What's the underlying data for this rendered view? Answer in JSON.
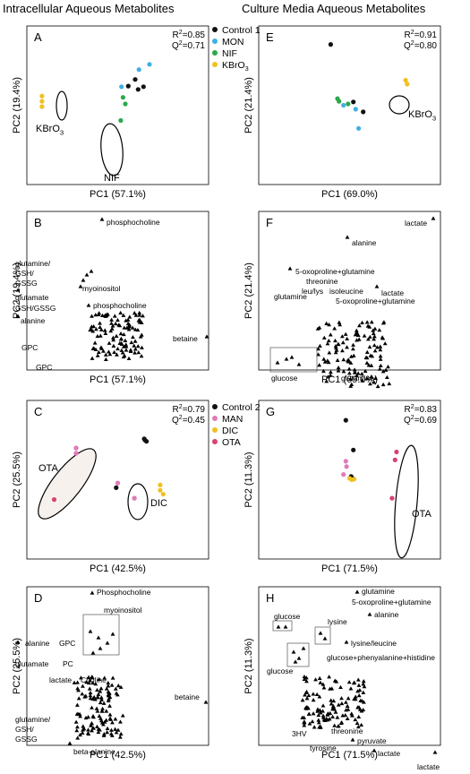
{
  "column_titles": {
    "left": "Intracellular Aqueous Metabolites",
    "right": "Culture Media Aqueous Metabolites"
  },
  "legends": {
    "set1": [
      {
        "label": "Control 1",
        "color": "#111111"
      },
      {
        "label": "MON",
        "color": "#3fb0e0"
      },
      {
        "label": "NIF",
        "color": "#2aa84a"
      },
      {
        "label": "KBrO",
        "sub": "3",
        "color": "#f0c020"
      }
    ],
    "set2": [
      {
        "label": "Control 2",
        "color": "#111111"
      },
      {
        "label": "MAN",
        "color": "#e07ab8"
      },
      {
        "label": "DIC",
        "color": "#f0c020"
      },
      {
        "label": "OTA",
        "color": "#d8436e"
      }
    ]
  },
  "chart_data": [
    {
      "panel": "A",
      "type": "scatter",
      "xlabel": "PC1 (57.1%)",
      "ylabel": "PC2 (19.4%)",
      "stats": {
        "r2": "0.85",
        "q2": "0.71"
      },
      "annotations": [
        {
          "text": "KBrO",
          "sub": "3"
        },
        {
          "text": "NIF"
        }
      ],
      "series": [
        {
          "name": "Control 1",
          "color": "#111111",
          "points": [
            [
              0.34,
              0.28
            ],
            [
              0.23,
              0.39
            ],
            [
              0.14,
              0.29
            ],
            [
              0.27,
              0.24
            ]
          ]
        },
        {
          "name": "MON",
          "color": "#3fb0e0",
          "points": [
            [
              0.42,
              0.62
            ],
            [
              0.28,
              0.54
            ],
            [
              0.05,
              0.28
            ]
          ]
        },
        {
          "name": "NIF",
          "color": "#2aa84a",
          "points": [
            [
              0.07,
              0.12
            ],
            [
              0.1,
              0.02
            ],
            [
              0.04,
              -0.23
            ]
          ]
        },
        {
          "name": "KBrO3",
          "color": "#f0c020",
          "points": [
            [
              -1.0,
              0.14
            ],
            [
              -1.0,
              0.06
            ],
            [
              -1.0,
              -0.02
            ]
          ]
        }
      ]
    },
    {
      "panel": "B",
      "type": "scatter",
      "xlabel": "PC1 (57.1%)",
      "ylabel": "PC2 (19.4%)",
      "labels": [
        {
          "text": "phosphocholine",
          "pos": [
            0.22,
            0.95
          ]
        },
        {
          "text": "myoinositol",
          "pos": [
            -0.02,
            0.58
          ]
        },
        {
          "text": "phosphocholine",
          "pos": [
            0.12,
            0.45
          ]
        },
        {
          "text": "glutamine/",
          "pos": [
            -0.98,
            0.72
          ]
        },
        {
          "text": "GSH/",
          "pos": [
            -0.98,
            0.62
          ]
        },
        {
          "text": "GSSG",
          "pos": [
            -0.98,
            0.52
          ]
        },
        {
          "text": "glutamate",
          "pos": [
            -0.98,
            0.45
          ]
        },
        {
          "text": "GSH/GSSG",
          "pos": [
            -0.98,
            0.36
          ]
        },
        {
          "text": "alanine",
          "pos": [
            -0.98,
            0.25
          ]
        },
        {
          "text": "GPC",
          "pos": [
            -0.88,
            -0.15
          ]
        },
        {
          "text": "GPC",
          "pos": [
            -0.72,
            -0.4
          ]
        },
        {
          "text": "betaine",
          "pos": [
            0.82,
            0.05
          ]
        }
      ]
    },
    {
      "panel": "C",
      "type": "scatter",
      "xlabel": "PC1 (42.5%)",
      "ylabel": "PC2 (25.5%)",
      "stats": {
        "r2": "0.79",
        "q2": "0.45"
      },
      "annotations": [
        {
          "text": "OTA"
        },
        {
          "text": "DIC"
        }
      ],
      "series": [
        {
          "name": "Control 2",
          "color": "#111111",
          "points": [
            [
              0.35,
              0.62
            ],
            [
              0.38,
              0.58
            ],
            [
              0.36,
              0.6
            ],
            [
              -0.02,
              -0.12
            ]
          ]
        },
        {
          "name": "MAN",
          "color": "#e07ab8",
          "points": [
            [
              -0.55,
              0.48
            ],
            [
              -0.55,
              0.4
            ],
            [
              0.0,
              -0.05
            ],
            [
              0.22,
              -0.28
            ]
          ]
        },
        {
          "name": "DIC",
          "color": "#f0c020",
          "points": [
            [
              0.56,
              -0.08
            ],
            [
              0.56,
              -0.16
            ],
            [
              0.6,
              -0.22
            ]
          ]
        },
        {
          "name": "OTA",
          "color": "#d8436e",
          "points": [
            [
              -0.84,
              -0.3
            ]
          ]
        }
      ]
    },
    {
      "panel": "D",
      "type": "scatter",
      "xlabel": "PC1 (42.5%)",
      "ylabel": "PC2 (25.5%)",
      "labels": [
        {
          "text": "Phosphocholine"
        },
        {
          "text": "myoinositol"
        },
        {
          "text": "alanine"
        },
        {
          "text": "GPC"
        },
        {
          "text": "glutamate"
        },
        {
          "text": "PC"
        },
        {
          "text": "lactate"
        },
        {
          "text": "Choline"
        },
        {
          "text": "betaine"
        },
        {
          "text": "glutamine/"
        },
        {
          "text": "GSH/"
        },
        {
          "text": "GSSG"
        },
        {
          "text": "beta-alanine"
        }
      ]
    },
    {
      "panel": "E",
      "type": "scatter",
      "xlabel": "PC1 (69.0%)",
      "ylabel": "PC2 (21.4%)",
      "stats": {
        "r2": "0.91",
        "q2": "0.80"
      },
      "annotations": [
        {
          "text": "KBrO",
          "sub": "3"
        }
      ],
      "series": [
        {
          "name": "Control 1",
          "color": "#111111",
          "points": [
            [
              -0.25,
              0.92
            ],
            [
              0.05,
              0.05
            ],
            [
              0.18,
              -0.1
            ]
          ]
        },
        {
          "name": "MON",
          "color": "#3fb0e0",
          "points": [
            [
              -0.08,
              0.0
            ],
            [
              0.08,
              -0.06
            ],
            [
              0.12,
              -0.35
            ]
          ]
        },
        {
          "name": "NIF",
          "color": "#2aa84a",
          "points": [
            [
              -0.16,
              0.1
            ],
            [
              -0.14,
              0.06
            ],
            [
              -0.02,
              0.02
            ]
          ]
        },
        {
          "name": "KBrO3",
          "color": "#f0c020",
          "points": [
            [
              0.74,
              0.38
            ],
            [
              0.76,
              0.32
            ]
          ]
        }
      ]
    },
    {
      "panel": "F",
      "type": "scatter",
      "xlabel": "PC1 (69.0%)",
      "ylabel": "PC2 (21.4%)",
      "labels": [
        {
          "text": "lactate"
        },
        {
          "text": "alanine"
        },
        {
          "text": "5-oxoproline+glutamine"
        },
        {
          "text": "threonine"
        },
        {
          "text": "leu/lys"
        },
        {
          "text": "isoleucine"
        },
        {
          "text": "lactate"
        },
        {
          "text": "glutamine"
        },
        {
          "text": "5-oxoproline+glutamine"
        },
        {
          "text": "glucose"
        },
        {
          "text": "glutamine"
        }
      ]
    },
    {
      "panel": "G",
      "type": "scatter",
      "xlabel": "PC1 (71.5%)",
      "ylabel": "PC2 (11.3%)",
      "stats": {
        "r2": "0.83",
        "q2": "0.69"
      },
      "annotations": [
        {
          "text": "OTA"
        }
      ],
      "series": [
        {
          "name": "Control 2",
          "color": "#111111",
          "points": [
            [
              -0.05,
              0.9
            ],
            [
              0.05,
              0.45
            ],
            [
              0.02,
              0.05
            ],
            [
              0.04,
              0.02
            ]
          ]
        },
        {
          "name": "MAN",
          "color": "#e07ab8",
          "points": [
            [
              -0.05,
              0.28
            ],
            [
              -0.04,
              0.2
            ],
            [
              -0.08,
              0.08
            ]
          ]
        },
        {
          "name": "DIC",
          "color": "#f0c020",
          "points": [
            [
              0.0,
              0.02
            ],
            [
              0.03,
              0.0
            ],
            [
              0.06,
              0.01
            ]
          ]
        },
        {
          "name": "OTA",
          "color": "#d8436e",
          "points": [
            [
              0.62,
              0.42
            ],
            [
              0.6,
              0.3
            ],
            [
              0.56,
              -0.28
            ]
          ]
        }
      ]
    },
    {
      "panel": "H",
      "type": "scatter",
      "xlabel": "PC1 (71.5%)",
      "ylabel": "PC2 (11.3%)",
      "labels": [
        {
          "text": "glutamine"
        },
        {
          "text": "5-oxoproline+glutamine"
        },
        {
          "text": "alanine"
        },
        {
          "text": "glucose"
        },
        {
          "text": "lysine"
        },
        {
          "text": "lysine/leucine"
        },
        {
          "text": "glucose+phenyalanine+histidine"
        },
        {
          "text": "glucose"
        },
        {
          "text": "3HV"
        },
        {
          "text": "threonine"
        },
        {
          "text": "pyruvate"
        },
        {
          "text": "tyrosine"
        },
        {
          "text": "lactate"
        },
        {
          "text": "lactate"
        }
      ]
    }
  ]
}
